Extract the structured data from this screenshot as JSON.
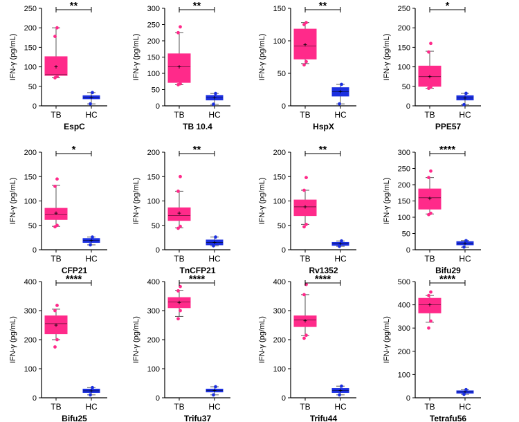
{
  "colors": {
    "tb": "#ff2a8a",
    "hc": "#1b2fe0",
    "axis": "#000000"
  },
  "y_label": "IFN-γ (pg/mL)",
  "chart_data": [
    {
      "type": "box",
      "title": "EspC",
      "ylabel": "IFN-γ (pg/mL)",
      "categories": [
        "TB",
        "HC"
      ],
      "ylim": [
        0,
        250
      ],
      "yticks": [
        0,
        50,
        100,
        150,
        200,
        250
      ],
      "significance": "**",
      "series": [
        {
          "name": "TB",
          "q1": 78,
          "median": 80,
          "q3": 126,
          "min": 72,
          "max": 200,
          "mean": 100,
          "points": [
            72,
            75,
            178,
            200
          ]
        },
        {
          "name": "HC",
          "q1": 18,
          "median": 22,
          "q3": 26,
          "min": 5,
          "max": 34,
          "mean": 22,
          "points": [
            5,
            34
          ]
        }
      ]
    },
    {
      "type": "box",
      "title": "TB 10.4",
      "ylabel": "IFN-γ (pg/mL)",
      "categories": [
        "TB",
        "HC"
      ],
      "ylim": [
        0,
        300
      ],
      "yticks": [
        0,
        50,
        100,
        150,
        200,
        250,
        300
      ],
      "significance": "**",
      "series": [
        {
          "name": "TB",
          "q1": 72,
          "median": 120,
          "q3": 160,
          "min": 65,
          "max": 225,
          "mean": 120,
          "points": [
            65,
            68,
            225,
            243
          ]
        },
        {
          "name": "HC",
          "q1": 18,
          "median": 25,
          "q3": 32,
          "min": 5,
          "max": 38,
          "mean": 25,
          "points": [
            5,
            38
          ]
        }
      ]
    },
    {
      "type": "box",
      "title": "HspX",
      "ylabel": "IFN-γ (pg/mL)",
      "categories": [
        "TB",
        "HC"
      ],
      "ylim": [
        0,
        150
      ],
      "yticks": [
        0,
        50,
        100,
        150
      ],
      "significance": "**",
      "series": [
        {
          "name": "TB",
          "q1": 72,
          "median": 92,
          "q3": 118,
          "min": 65,
          "max": 128,
          "mean": 94,
          "points": [
            63,
            68,
            125,
            128
          ]
        },
        {
          "name": "HC",
          "q1": 15,
          "median": 22,
          "q3": 28,
          "min": 3,
          "max": 33,
          "mean": 22,
          "points": [
            3,
            33
          ]
        }
      ]
    },
    {
      "type": "box",
      "title": "PPE57",
      "ylabel": "IFN-γ (pg/mL)",
      "categories": [
        "TB",
        "HC"
      ],
      "ylim": [
        0,
        250
      ],
      "yticks": [
        0,
        50,
        100,
        150,
        200,
        250
      ],
      "significance": "*",
      "series": [
        {
          "name": "TB",
          "q1": 50,
          "median": 75,
          "q3": 102,
          "min": 45,
          "max": 140,
          "mean": 75,
          "points": [
            45,
            48,
            138,
            160
          ]
        },
        {
          "name": "HC",
          "q1": 15,
          "median": 20,
          "q3": 26,
          "min": 3,
          "max": 32,
          "mean": 20,
          "points": [
            3,
            32
          ]
        }
      ]
    },
    {
      "type": "box",
      "title": "CFP21",
      "ylabel": "IFN-γ (pg/mL)",
      "categories": [
        "TB",
        "HC"
      ],
      "ylim": [
        0,
        200
      ],
      "yticks": [
        0,
        50,
        100,
        150,
        200
      ],
      "significance": "*",
      "series": [
        {
          "name": "TB",
          "q1": 62,
          "median": 72,
          "q3": 85,
          "min": 48,
          "max": 132,
          "mean": 75,
          "points": [
            47,
            50,
            130,
            145
          ]
        },
        {
          "name": "HC",
          "q1": 15,
          "median": 19,
          "q3": 23,
          "min": 10,
          "max": 26,
          "mean": 19,
          "points": [
            10,
            26
          ]
        }
      ]
    },
    {
      "type": "box",
      "title": "TnCFP21",
      "ylabel": "IFN-γ (pg/mL)",
      "categories": [
        "TB",
        "HC"
      ],
      "ylim": [
        0,
        200
      ],
      "yticks": [
        0,
        50,
        100,
        150,
        200
      ],
      "significance": "**",
      "series": [
        {
          "name": "TB",
          "q1": 60,
          "median": 70,
          "q3": 86,
          "min": 45,
          "max": 120,
          "mean": 75,
          "points": [
            44,
            48,
            120,
            150
          ]
        },
        {
          "name": "HC",
          "q1": 10,
          "median": 15,
          "q3": 20,
          "min": 8,
          "max": 26,
          "mean": 15,
          "points": [
            8,
            26
          ]
        }
      ]
    },
    {
      "type": "box",
      "title": "Rv1352",
      "ylabel": "IFN-γ (pg/mL)",
      "categories": [
        "TB",
        "HC"
      ],
      "ylim": [
        0,
        200
      ],
      "yticks": [
        0,
        50,
        100,
        150,
        200
      ],
      "significance": "**",
      "series": [
        {
          "name": "TB",
          "q1": 70,
          "median": 88,
          "q3": 102,
          "min": 52,
          "max": 122,
          "mean": 88,
          "points": [
            47,
            52,
            122,
            148
          ]
        },
        {
          "name": "HC",
          "q1": 9,
          "median": 12,
          "q3": 15,
          "min": 7,
          "max": 18,
          "mean": 12,
          "points": [
            7,
            18
          ]
        }
      ]
    },
    {
      "type": "box",
      "title": "Bifu29",
      "ylabel": "IFN-γ (pg/mL)",
      "categories": [
        "TB",
        "HC"
      ],
      "ylim": [
        0,
        300
      ],
      "yticks": [
        0,
        50,
        100,
        150,
        200,
        250,
        300
      ],
      "significance": "****",
      "series": [
        {
          "name": "TB",
          "q1": 125,
          "median": 160,
          "q3": 187,
          "min": 110,
          "max": 222,
          "mean": 158,
          "points": [
            108,
            112,
            222,
            242
          ]
        },
        {
          "name": "HC",
          "q1": 15,
          "median": 20,
          "q3": 25,
          "min": 8,
          "max": 28,
          "mean": 20,
          "points": [
            8,
            28
          ]
        }
      ]
    },
    {
      "type": "box",
      "title": "Bifu25",
      "ylabel": "IFN-γ (pg/mL)",
      "categories": [
        "TB",
        "HC"
      ],
      "ylim": [
        0,
        400
      ],
      "yticks": [
        0,
        100,
        200,
        300,
        400
      ],
      "significance": "****",
      "series": [
        {
          "name": "TB",
          "q1": 220,
          "median": 255,
          "q3": 282,
          "min": 200,
          "max": 305,
          "mean": 250,
          "points": [
            175,
            200,
            300,
            318
          ]
        },
        {
          "name": "HC",
          "q1": 18,
          "median": 24,
          "q3": 30,
          "min": 10,
          "max": 35,
          "mean": 24,
          "points": [
            10,
            35
          ]
        }
      ]
    },
    {
      "type": "box",
      "title": "Trifu37",
      "ylabel": "IFN-γ (pg/mL)",
      "categories": [
        "TB",
        "HC"
      ],
      "ylim": [
        0,
        400
      ],
      "yticks": [
        0,
        100,
        200,
        300,
        400
      ],
      "significance": "****",
      "series": [
        {
          "name": "TB",
          "q1": 310,
          "median": 330,
          "q3": 345,
          "min": 280,
          "max": 370,
          "mean": 328,
          "points": [
            272,
            300,
            368,
            383
          ]
        },
        {
          "name": "HC",
          "q1": 20,
          "median": 25,
          "q3": 30,
          "min": 10,
          "max": 38,
          "mean": 25,
          "points": [
            10,
            38
          ]
        }
      ]
    },
    {
      "type": "box",
      "title": "Trifu44",
      "ylabel": "IFN-γ (pg/mL)",
      "categories": [
        "TB",
        "HC"
      ],
      "ylim": [
        0,
        400
      ],
      "yticks": [
        0,
        100,
        200,
        300,
        400
      ],
      "significance": "****",
      "series": [
        {
          "name": "TB",
          "q1": 245,
          "median": 268,
          "q3": 282,
          "min": 215,
          "max": 355,
          "mean": 265,
          "points": [
            205,
            215,
            355,
            390
          ]
        },
        {
          "name": "HC",
          "q1": 18,
          "median": 25,
          "q3": 32,
          "min": 10,
          "max": 40,
          "mean": 25,
          "points": [
            10,
            40
          ]
        }
      ]
    },
    {
      "type": "box",
      "title": "Tetrafu56",
      "ylabel": "IFN-γ (pg/mL)",
      "categories": [
        "TB",
        "HC"
      ],
      "ylim": [
        0,
        500
      ],
      "yticks": [
        0,
        100,
        200,
        300,
        400,
        500
      ],
      "significance": "****",
      "series": [
        {
          "name": "TB",
          "q1": 365,
          "median": 400,
          "q3": 428,
          "min": 325,
          "max": 440,
          "mean": 400,
          "points": [
            300,
            330,
            440,
            455
          ]
        },
        {
          "name": "HC",
          "q1": 20,
          "median": 25,
          "q3": 30,
          "min": 15,
          "max": 35,
          "mean": 25,
          "points": [
            15,
            35
          ]
        }
      ]
    }
  ]
}
